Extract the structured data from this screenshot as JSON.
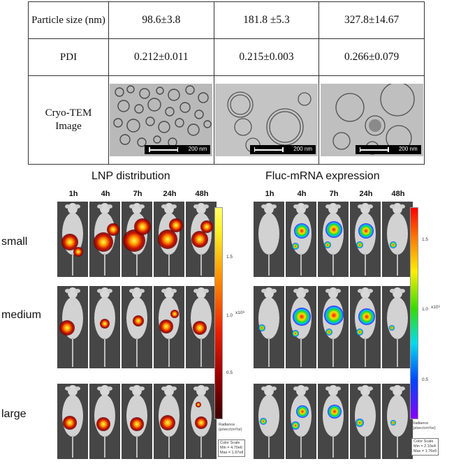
{
  "table": {
    "row_headers": [
      "Particle size (nm)",
      "PDI",
      "Cryo-TEM Image"
    ],
    "particle_size": [
      "98.6±3.8",
      "181.8 ±5.3",
      "327.8±14.67"
    ],
    "pdi": [
      "0.212±0.011",
      "0.215±0.003",
      "0.266±0.079"
    ],
    "scale_bar": "200 nm"
  },
  "panels": [
    {
      "title": "LNP distribution",
      "colormap": "hot",
      "colorbar": {
        "ticks": [
          "1.5",
          "1.0",
          "0.5"
        ],
        "exponent": "x10⁸",
        "unit_label": "Radiance",
        "unit": "(p/sec/cm²/sr)",
        "scale_title": "Color Scale",
        "min": "Min = 4.70e6",
        "max": "Max = 1.97e8"
      }
    },
    {
      "title": "Fluc-mRNA expression",
      "colormap": "rainbow",
      "colorbar": {
        "ticks": [
          "1.5",
          "1.0",
          "0.5"
        ],
        "exponent": "x10⁵",
        "unit_label": "Radiance",
        "unit": "(p/sec/cm²/sr)",
        "scale_title": "Color Scale",
        "min": "Min = 2.10e4",
        "max": "Max = 1.76e5"
      }
    }
  ],
  "timepoints": [
    "1h",
    "4h",
    "7h",
    "24h",
    "48h"
  ],
  "sizes": [
    "small",
    "medium",
    "large"
  ]
}
